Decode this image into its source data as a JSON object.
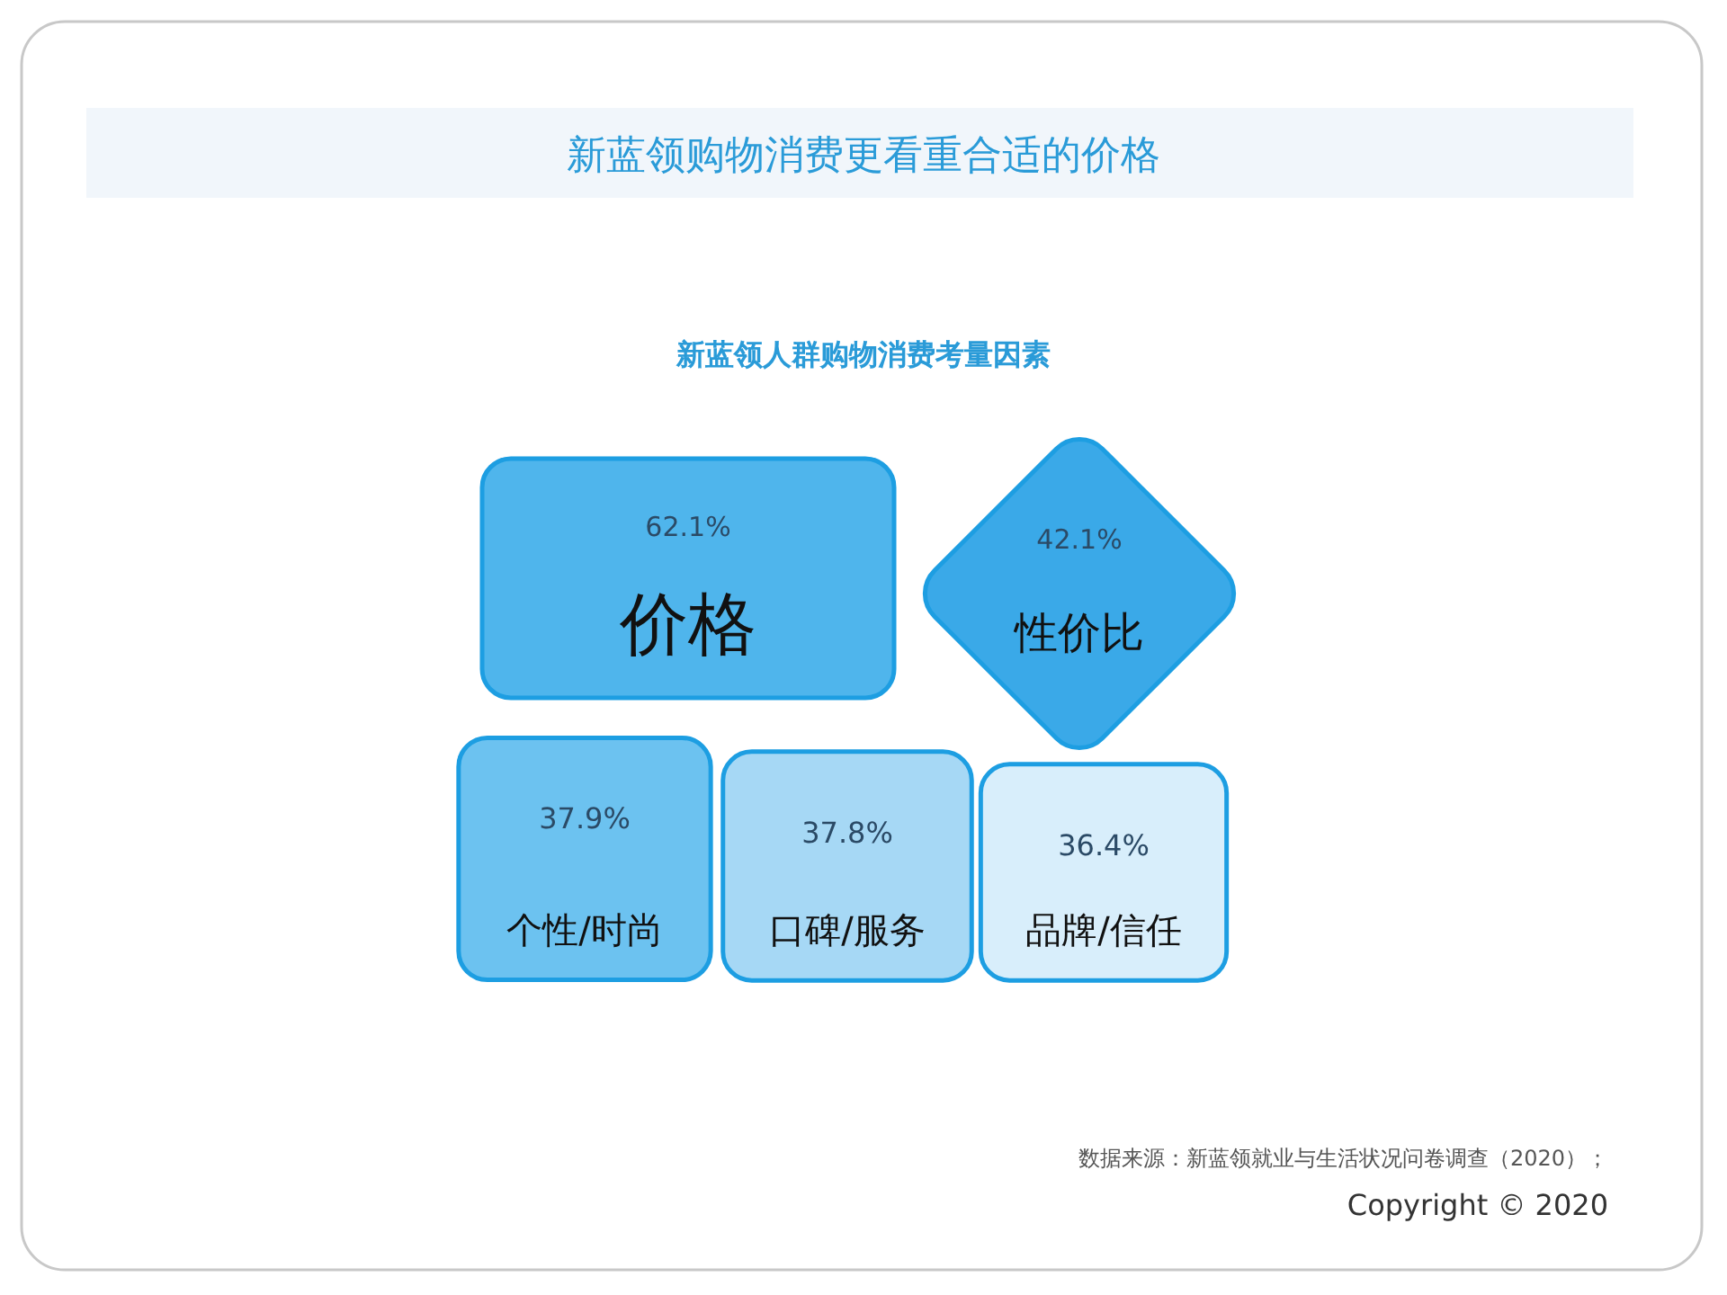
{
  "chart_data": {
    "type": "other",
    "title": "新蓝领购物消费更看重合适的价格",
    "subtitle": "新蓝领人群购物消费考量因素",
    "categories": [
      "价格",
      "性价比",
      "个性/时尚",
      "口碑/服务",
      "品牌/信任"
    ],
    "values": [
      62.1,
      42.1,
      37.9,
      37.8,
      36.4
    ],
    "value_labels": [
      "62.1%",
      "42.1%",
      "37.9%",
      "37.8%",
      "36.4%"
    ],
    "colors": [
      "#4fb5ec",
      "#3aa9e8",
      "#6cc2f0",
      "#a6d8f5",
      "#d8eefb"
    ],
    "annotations": [
      "数据来源：新蓝领就业与生活状况问卷调查（2020）；",
      "Copyright © 2020"
    ]
  }
}
